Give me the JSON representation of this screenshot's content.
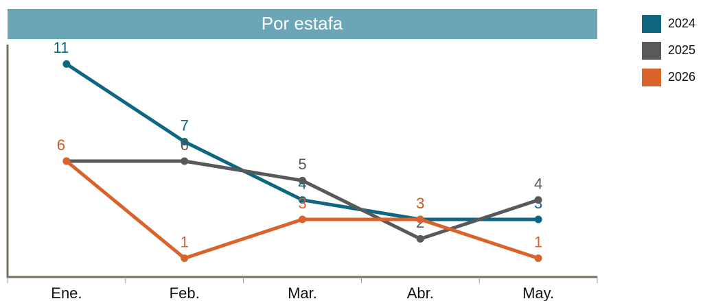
{
  "chart_data": {
    "type": "line",
    "title": "Por estafa",
    "categories": [
      "Ene.",
      "Feb.",
      "Mar.",
      "Abr.",
      "May."
    ],
    "series": [
      {
        "name": "2024",
        "color": "#0e6680",
        "values": [
          11,
          7,
          4,
          3,
          3
        ]
      },
      {
        "name": "2025",
        "color": "#58595b",
        "values": [
          6,
          6,
          5,
          2,
          4
        ]
      },
      {
        "name": "2026",
        "color": "#d9632b",
        "values": [
          6,
          1,
          3,
          3,
          1
        ]
      }
    ],
    "ylim": [
      0,
      12
    ],
    "legend": "right",
    "grid": false
  }
}
